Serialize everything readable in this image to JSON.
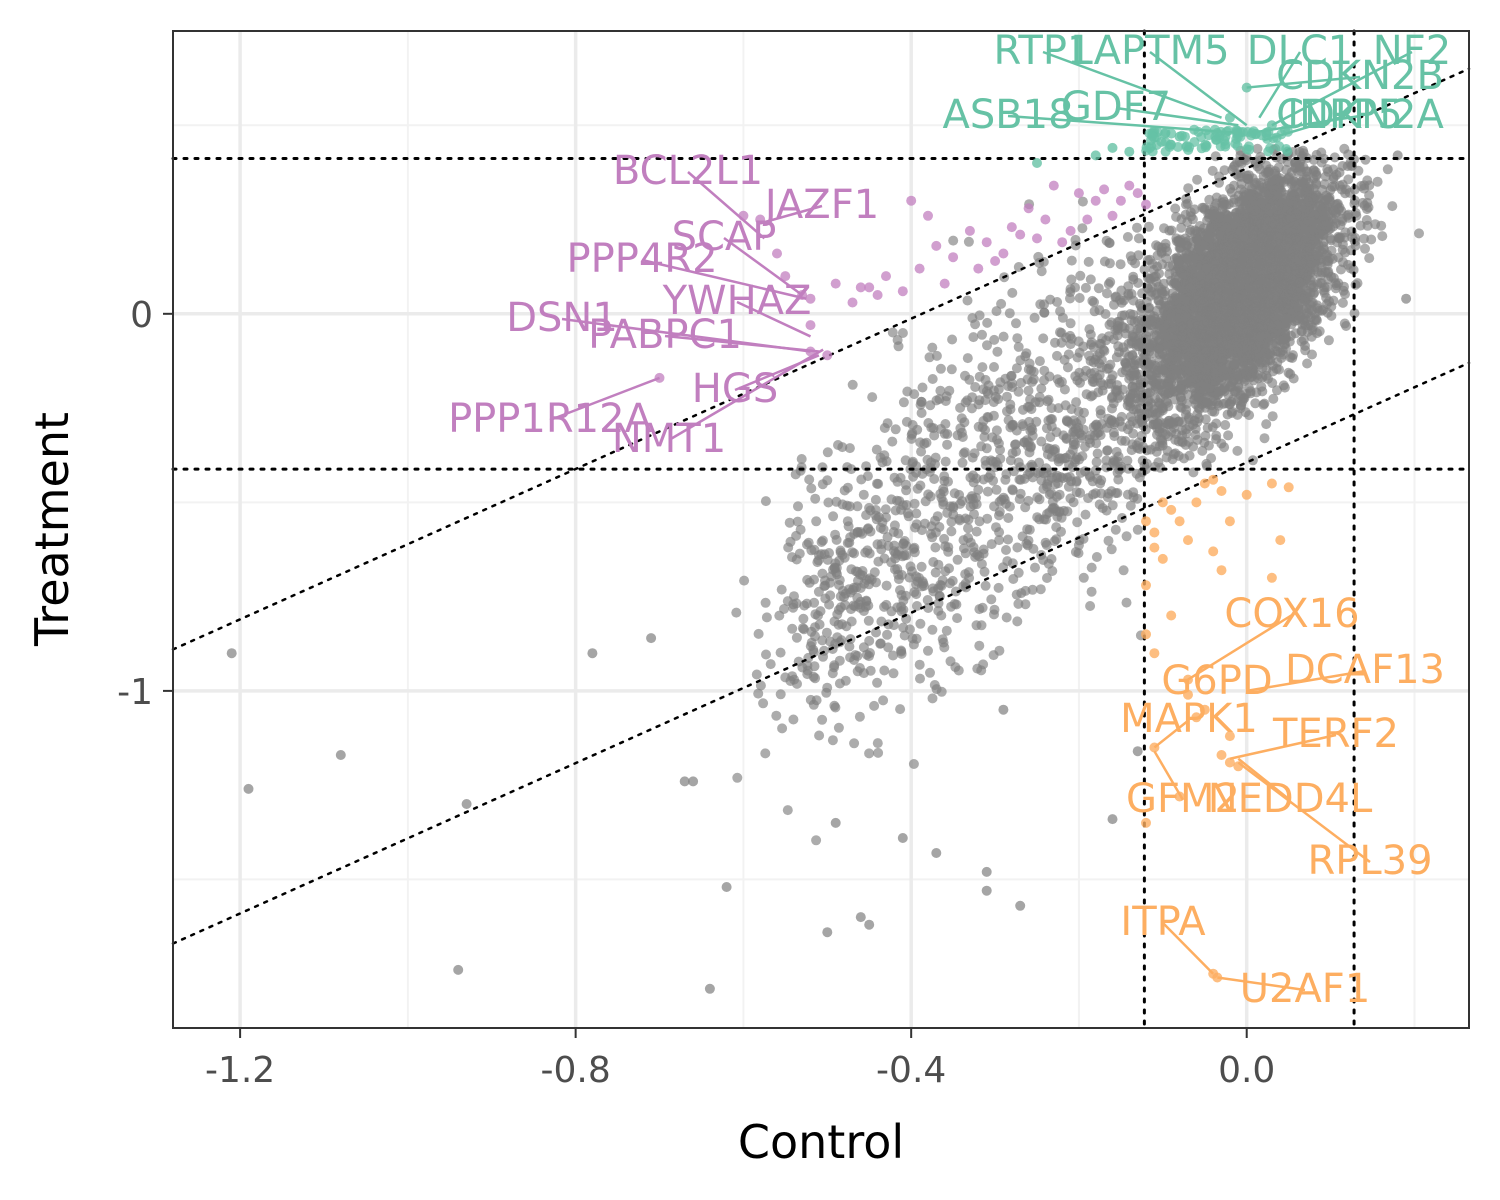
{
  "chart_data": {
    "type": "scatter",
    "title": "",
    "xlabel": "Control",
    "ylabel": "Treatment",
    "xlim": [
      -1.28,
      0.265
    ],
    "ylim": [
      -1.894,
      0.75
    ],
    "x_ticks": [
      -1.2,
      -0.8,
      -0.4,
      0.0
    ],
    "x_tick_labels": [
      "-1.2",
      "-0.8",
      "-0.4",
      "0.0"
    ],
    "y_ticks": [
      0,
      -1
    ],
    "y_tick_labels": [
      "0",
      "-1"
    ],
    "grid": true,
    "legend": "none",
    "colors": {
      "background": "#7f7f7f",
      "upper_group": "#66c2a5",
      "left_group": "#c17fbf",
      "lower_group": "#fdae61"
    },
    "reference_lines": {
      "vertical_dotted_x": [
        -0.122,
        0.128
      ],
      "horizontal_dotted_y": [
        0.412,
        -0.412
      ],
      "diagonal_dotted": [
        {
          "from": [
            -1.28,
            -0.89
          ],
          "to": [
            0.265,
            0.65
          ]
        },
        {
          "from": [
            -1.28,
            -1.67
          ],
          "to": [
            0.265,
            -0.13
          ]
        }
      ]
    },
    "background_point_count_approx": 6000,
    "groups": [
      {
        "name": "upper",
        "color": "#66c2a5",
        "labels": [
          {
            "text": "RTP1",
            "point": [
              -0.03,
              0.52
            ]
          },
          {
            "text": "LAPTM5",
            "point": [
              0.0,
              0.5
            ]
          },
          {
            "text": "DLC1",
            "point": [
              0.015,
              0.52
            ]
          },
          {
            "text": "NF2",
            "point": [
              0.03,
              0.5
            ]
          },
          {
            "text": "CDKN2B",
            "point": [
              0.0,
              0.6
            ]
          },
          {
            "text": "CDKN2A",
            "point": [
              0.005,
              0.48
            ]
          },
          {
            "text": "INPP5",
            "point": [
              0.02,
              0.46
            ]
          },
          {
            "text": "GDF7",
            "point": [
              -0.01,
              0.5
            ]
          },
          {
            "text": "ASB18",
            "point": [
              -0.01,
              0.48
            ]
          }
        ]
      },
      {
        "name": "left",
        "color": "#c17fbf",
        "labels": [
          {
            "text": "BCL2L1",
            "point": [
              -0.575,
              0.2
            ]
          },
          {
            "text": "JAZF1",
            "point": [
              -0.58,
              0.24
            ]
          },
          {
            "text": "SCAP",
            "point": [
              -0.53,
              0.05
            ]
          },
          {
            "text": "PPP4R2",
            "point": [
              -0.525,
              0.04
            ]
          },
          {
            "text": "YWHAZ",
            "point": [
              -0.52,
              -0.06
            ]
          },
          {
            "text": "DSN1",
            "point": [
              -0.52,
              -0.1
            ]
          },
          {
            "text": "PABPC1",
            "point": [
              -0.51,
              -0.1
            ]
          },
          {
            "text": "HGS",
            "point": [
              -0.51,
              -0.11
            ]
          },
          {
            "text": "NMT1",
            "point": [
              -0.505,
              -0.095
            ]
          },
          {
            "text": "PPP1R12A",
            "point": [
              -0.7,
              -0.17
            ]
          }
        ]
      },
      {
        "name": "lower",
        "color": "#fdae61",
        "labels": [
          {
            "text": "COX16",
            "point": [
              -0.07,
              -0.97
            ]
          },
          {
            "text": "G6PD",
            "point": [
              -0.07,
              -1.0
            ]
          },
          {
            "text": "DCAF13",
            "point": [
              0.0,
              -1.0
            ]
          },
          {
            "text": "MAPK1",
            "point": [
              -0.11,
              -1.15
            ]
          },
          {
            "text": "TERF2",
            "point": [
              -0.02,
              -1.18
            ]
          },
          {
            "text": "GFM2",
            "point": [
              -0.11,
              -1.16
            ]
          },
          {
            "text": "NEDD4L",
            "point": [
              -0.01,
              -1.18
            ]
          },
          {
            "text": "RPL39",
            "point": [
              -0.01,
              -1.19
            ]
          },
          {
            "text": "ITPA",
            "point": [
              -0.04,
              -1.75
            ]
          },
          {
            "text": "U2AF1",
            "point": [
              -0.035,
              -1.76
            ]
          }
        ]
      }
    ]
  }
}
